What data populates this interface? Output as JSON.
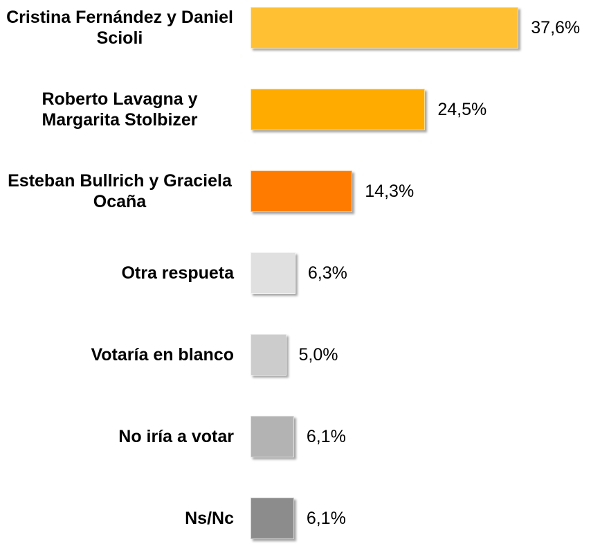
{
  "chart_data": {
    "type": "bar",
    "orientation": "horizontal",
    "categories": [
      "Cristina Fernández y Daniel Scioli",
      "Roberto Lavagna y Margarita Stolbizer",
      "Esteban Bullrich y Graciela Ocaña",
      "Otra respueta",
      "Votaría en blanco",
      "No iría a votar",
      "Ns/Nc"
    ],
    "values": [
      37.6,
      24.5,
      14.3,
      6.3,
      5.0,
      6.1,
      6.1
    ],
    "value_labels": [
      "37,6%",
      "24,5%",
      "14,3%",
      "6,3%",
      "5,0%",
      "6,1%",
      "6,1%"
    ],
    "colors": [
      "#ffc133",
      "#ffab00",
      "#ff7b00",
      "#e0e0e0",
      "#cccccc",
      "#b3b3b3",
      "#8c8c8c"
    ],
    "xlim": [
      0,
      40
    ]
  }
}
